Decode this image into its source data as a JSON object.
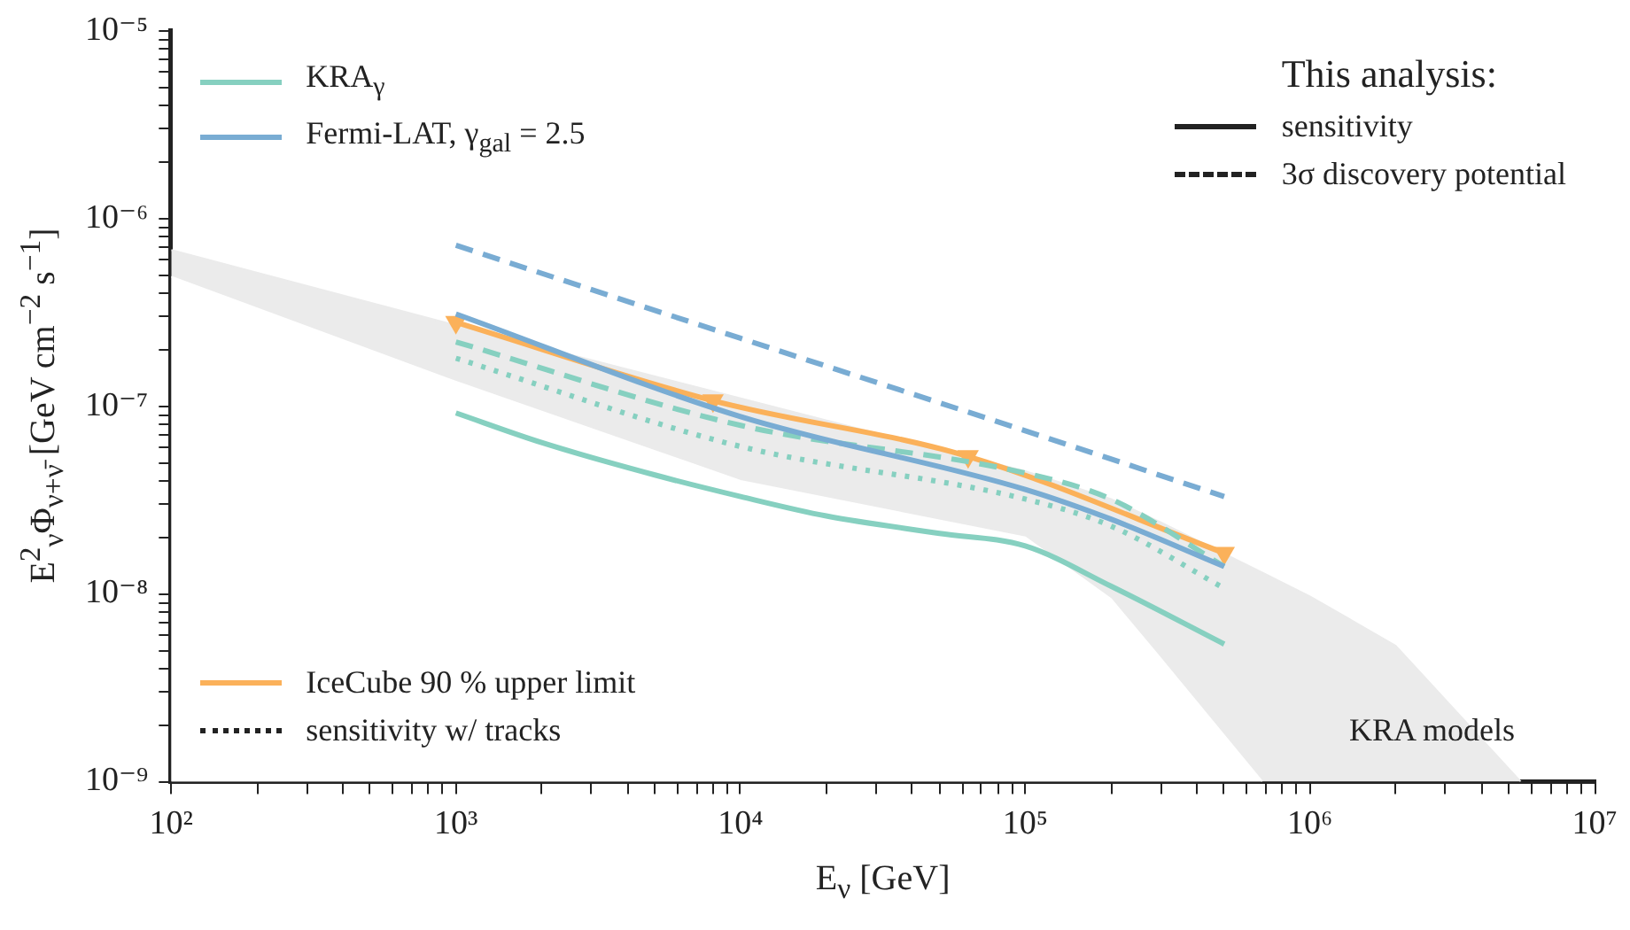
{
  "chart_data": {
    "type": "line",
    "xlabel": "E$_{ν}$ [GeV]",
    "ylabel": "E$^{2}$$_{ν}$Φ$_{ν+ν̄}$ [GeV cm$^{−2}$ s$^{−1}$]",
    "log": "xy",
    "xlim": [
      100,
      10000000
    ],
    "ylim": [
      1e-09,
      1e-05
    ],
    "xticks": [
      {
        "value": 100,
        "label": "10²"
      },
      {
        "value": 200,
        "label": null
      },
      {
        "value": 300,
        "label": null
      },
      {
        "value": 400,
        "label": null
      },
      {
        "value": 500,
        "label": null
      },
      {
        "value": 600,
        "label": null
      },
      {
        "value": 700,
        "label": null
      },
      {
        "value": 800,
        "label": null
      },
      {
        "value": 900,
        "label": null
      },
      {
        "value": 1000,
        "label": "10³"
      },
      {
        "value": 2000,
        "label": null
      },
      {
        "value": 3000,
        "label": null
      },
      {
        "value": 4000,
        "label": null
      },
      {
        "value": 5000,
        "label": null
      },
      {
        "value": 6000,
        "label": null
      },
      {
        "value": 7000,
        "label": null
      },
      {
        "value": 8000,
        "label": null
      },
      {
        "value": 9000,
        "label": null
      },
      {
        "value": 10000,
        "label": "10⁴"
      },
      {
        "value": 20000,
        "label": null
      },
      {
        "value": 30000,
        "label": null
      },
      {
        "value": 40000,
        "label": null
      },
      {
        "value": 50000,
        "label": null
      },
      {
        "value": 60000,
        "label": null
      },
      {
        "value": 70000,
        "label": null
      },
      {
        "value": 80000,
        "label": null
      },
      {
        "value": 90000,
        "label": null
      },
      {
        "value": 100000,
        "label": "10⁵"
      },
      {
        "value": 200000,
        "label": null
      },
      {
        "value": 300000,
        "label": null
      },
      {
        "value": 400000,
        "label": null
      },
      {
        "value": 500000,
        "label": null
      },
      {
        "value": 600000,
        "label": null
      },
      {
        "value": 700000,
        "label": null
      },
      {
        "value": 800000,
        "label": null
      },
      {
        "value": 900000,
        "label": null
      },
      {
        "value": 1000000,
        "label": "10⁶"
      },
      {
        "value": 2000000,
        "label": null
      },
      {
        "value": 3000000,
        "label": null
      },
      {
        "value": 4000000,
        "label": null
      },
      {
        "value": 5000000,
        "label": null
      },
      {
        "value": 6000000,
        "label": null
      },
      {
        "value": 7000000,
        "label": null
      },
      {
        "value": 8000000,
        "label": null
      },
      {
        "value": 9000000,
        "label": null
      },
      {
        "value": 10000000,
        "label": "10⁷"
      }
    ],
    "yticks": [
      {
        "value": 1e-09,
        "label": "10⁻⁹"
      },
      {
        "value": 2e-09,
        "label": null
      },
      {
        "value": 3e-09,
        "label": null
      },
      {
        "value": 4e-09,
        "label": null
      },
      {
        "value": 5e-09,
        "label": null
      },
      {
        "value": 6e-09,
        "label": null
      },
      {
        "value": 7e-09,
        "label": null
      },
      {
        "value": 8e-09,
        "label": null
      },
      {
        "value": 9e-09,
        "label": null
      },
      {
        "value": 1e-08,
        "label": "10⁻⁸"
      },
      {
        "value": 2e-08,
        "label": null
      },
      {
        "value": 3e-08,
        "label": null
      },
      {
        "value": 4e-08,
        "label": null
      },
      {
        "value": 5e-08,
        "label": null
      },
      {
        "value": 6e-08,
        "label": null
      },
      {
        "value": 7e-08,
        "label": null
      },
      {
        "value": 8e-08,
        "label": null
      },
      {
        "value": 9e-08,
        "label": null
      },
      {
        "value": 1e-07,
        "label": "10⁻⁷"
      },
      {
        "value": 2e-07,
        "label": null
      },
      {
        "value": 3e-07,
        "label": null
      },
      {
        "value": 4e-07,
        "label": null
      },
      {
        "value": 5e-07,
        "label": null
      },
      {
        "value": 6e-07,
        "label": null
      },
      {
        "value": 7e-07,
        "label": null
      },
      {
        "value": 8e-07,
        "label": null
      },
      {
        "value": 9e-07,
        "label": null
      },
      {
        "value": 1e-06,
        "label": "10⁻⁶"
      },
      {
        "value": 2e-06,
        "label": null
      },
      {
        "value": 3e-06,
        "label": null
      },
      {
        "value": 4e-06,
        "label": null
      },
      {
        "value": 5e-06,
        "label": null
      },
      {
        "value": 6e-06,
        "label": null
      },
      {
        "value": 7e-06,
        "label": null
      },
      {
        "value": 8e-06,
        "label": null
      },
      {
        "value": 9e-06,
        "label": null
      },
      {
        "value": 1e-05,
        "label": "10⁻⁵"
      }
    ],
    "legend": "left",
    "legend_title": "This analysis:",
    "annotations": [
      "sensitivity",
      "3σ discovery potential",
      "sensitivity w/ tracks"
    ],
    "series": [
      {
        "type": "area",
        "name": "KRA models",
        "color": "#ebebeb",
        "x": [
          100,
          1000,
          10000,
          100000,
          200000,
          300000,
          680000,
          1000000,
          2000000,
          5500000
        ],
        "values": [
          6.8e-07,
          2.7e-07,
          1.1e-07,
          4.5e-08,
          3.2e-08,
          2.4e-08,
          1.3e-08,
          9.7e-09,
          5.3e-09,
          1e-09
        ]
      },
      {
        "type": "area",
        "color": "#ffffff",
        "x": [
          100,
          1000,
          10000,
          100000,
          200000,
          300000,
          680000
        ],
        "values": [
          4.9e-07,
          1.35e-07,
          4e-08,
          2e-08,
          9.4e-09,
          4.5e-09,
          1e-09
        ]
      },
      {
        "name": "KRA$_{γ}$",
        "color": "#86d0c0",
        "line_style": "solid",
        "x": [
          1000,
          2000,
          5000,
          10000,
          20000,
          50000,
          100000,
          200000,
          500000
        ],
        "values": [
          9.2e-08,
          6.4e-08,
          4.3e-08,
          3.3e-08,
          2.6e-08,
          2.1e-08,
          1.8e-08,
          1.1e-08,
          5.4e-09
        ]
      },
      {
        "name": "Fermi-LAT, γ$_{gal}$ = 2.5",
        "color": "#79acd3",
        "line_style": "solid",
        "x": [
          1000,
          10000,
          100000,
          200000,
          500000
        ],
        "values": [
          3.1e-07,
          8.8e-08,
          3.6e-08,
          2.5e-08,
          1.4e-08
        ]
      },
      {
        "color": "#86d0c0",
        "line_style": "dashed",
        "x": [
          1000,
          10000,
          100000,
          200000,
          500000
        ],
        "values": [
          2.2e-07,
          7.9e-08,
          4.4e-08,
          3.2e-08,
          1.4e-08
        ]
      },
      {
        "color": "#86d0c0",
        "line_style": "dotted",
        "x": [
          1000,
          10000,
          100000,
          200000,
          500000
        ],
        "values": [
          1.8e-07,
          6.1e-08,
          3.2e-08,
          2.3e-08,
          1.07e-08
        ]
      },
      {
        "color": "#79acd3",
        "line_style": "dashed",
        "x": [
          1000,
          10000,
          100000,
          500000
        ],
        "values": [
          7.2e-07,
          2.3e-07,
          7.4e-08,
          3.3e-08
        ]
      },
      {
        "name": "IceCube 90 % upper limit",
        "color": "#fbb15a",
        "line_style": "solid",
        "marker": "triangle",
        "x": [
          1000,
          8000,
          63000,
          500000
        ],
        "values": [
          2.8e-07,
          1.07e-07,
          5.4e-08,
          1.65e-08
        ]
      }
    ]
  }
}
